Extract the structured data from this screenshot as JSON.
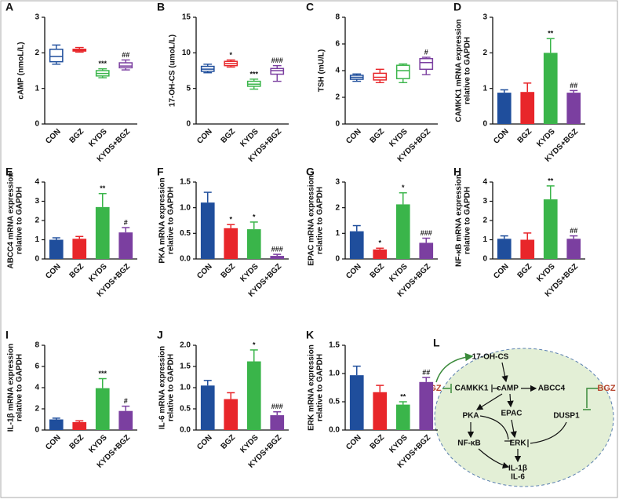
{
  "chart_data": [
    {
      "type": "box",
      "panel": "A",
      "ylabel": [
        "cAMP (nmoL/L)"
      ],
      "categories": [
        "CON",
        "BGZ",
        "KYDS",
        "KYDS+BGZ"
      ],
      "colors": [
        "#1f4e9c",
        "#e8262a",
        "#3ab54a",
        "#7b3fa0"
      ],
      "ylim": [
        0,
        3
      ],
      "yticks": [
        0,
        1,
        2,
        3
      ],
      "boxes": [
        {
          "min": 1.68,
          "q1": 1.75,
          "median": 1.9,
          "q3": 2.1,
          "max": 2.22
        },
        {
          "min": 2.02,
          "q1": 2.05,
          "median": 2.07,
          "q3": 2.1,
          "max": 2.15
        },
        {
          "min": 1.3,
          "q1": 1.35,
          "median": 1.42,
          "q3": 1.5,
          "max": 1.55
        },
        {
          "min": 1.52,
          "q1": 1.58,
          "median": 1.63,
          "q3": 1.72,
          "max": 1.8
        }
      ],
      "annotations": [
        null,
        null,
        "***",
        "##"
      ]
    },
    {
      "type": "box",
      "panel": "B",
      "ylabel": [
        "17-OH-CS (umoL/L)"
      ],
      "categories": [
        "CON",
        "BGZ",
        "KYDS",
        "KYDS+BGZ"
      ],
      "colors": [
        "#1f4e9c",
        "#e8262a",
        "#3ab54a",
        "#7b3fa0"
      ],
      "ylim": [
        0,
        15
      ],
      "yticks": [
        0,
        5,
        10,
        15
      ],
      "boxes": [
        {
          "min": 7.2,
          "q1": 7.4,
          "median": 7.7,
          "q3": 8.1,
          "max": 8.4
        },
        {
          "min": 8.0,
          "q1": 8.2,
          "median": 8.5,
          "q3": 8.8,
          "max": 9.0
        },
        {
          "min": 4.9,
          "q1": 5.3,
          "median": 5.6,
          "q3": 6.0,
          "max": 6.3
        },
        {
          "min": 6.0,
          "q1": 7.0,
          "median": 7.5,
          "q3": 7.8,
          "max": 8.2
        }
      ],
      "annotations": [
        null,
        "*",
        "***",
        "###"
      ]
    },
    {
      "type": "box",
      "panel": "C",
      "ylabel": [
        "TSH (mU/L)"
      ],
      "categories": [
        "CON",
        "BGZ",
        "KYDS",
        "KYDS+BGZ"
      ],
      "colors": [
        "#1f4e9c",
        "#e8262a",
        "#3ab54a",
        "#7b3fa0"
      ],
      "ylim": [
        0,
        8
      ],
      "yticks": [
        0,
        2,
        4,
        6,
        8
      ],
      "boxes": [
        {
          "min": 3.2,
          "q1": 3.35,
          "median": 3.5,
          "q3": 3.65,
          "max": 3.75
        },
        {
          "min": 3.1,
          "q1": 3.3,
          "median": 3.5,
          "q3": 3.8,
          "max": 4.1
        },
        {
          "min": 3.1,
          "q1": 3.4,
          "median": 4.0,
          "q3": 4.4,
          "max": 4.5
        },
        {
          "min": 3.7,
          "q1": 4.1,
          "median": 4.6,
          "q3": 4.9,
          "max": 5.0
        }
      ],
      "annotations": [
        null,
        null,
        null,
        "#"
      ]
    },
    {
      "type": "bar",
      "panel": "D",
      "ylabel": [
        "CAMKK1 mRNA expression",
        "relative to GAPDH"
      ],
      "categories": [
        "CON",
        "BGZ",
        "KYDS",
        "KYDS+BGZ"
      ],
      "colors": [
        "#1f4e9c",
        "#e8262a",
        "#3ab54a",
        "#7b3fa0"
      ],
      "ylim": [
        0,
        3
      ],
      "yticks": [
        0,
        1,
        2,
        3
      ],
      "values": [
        0.88,
        0.9,
        2.0,
        0.88
      ],
      "errors": [
        0.08,
        0.25,
        0.4,
        0.06
      ],
      "annotations": [
        null,
        null,
        "**",
        "##"
      ]
    },
    {
      "type": "bar",
      "panel": "E",
      "ylabel": [
        "ABCC4 mRNA expression",
        "relative to GAPDH"
      ],
      "categories": [
        "CON",
        "BGZ",
        "KYDS",
        "KYDS+BGZ"
      ],
      "colors": [
        "#1f4e9c",
        "#e8262a",
        "#3ab54a",
        "#7b3fa0"
      ],
      "ylim": [
        0,
        4
      ],
      "yticks": [
        0,
        1,
        2,
        3,
        4
      ],
      "values": [
        1.0,
        1.05,
        2.7,
        1.38
      ],
      "errors": [
        0.1,
        0.12,
        0.7,
        0.25
      ],
      "annotations": [
        null,
        null,
        "**",
        "#"
      ]
    },
    {
      "type": "bar",
      "panel": "F",
      "ylabel": [
        "PKA mRNA expression",
        "relative to GAPDH"
      ],
      "categories": [
        "CON",
        "BGZ",
        "KYDS",
        "KYDS+BGZ"
      ],
      "colors": [
        "#1f4e9c",
        "#e8262a",
        "#3ab54a",
        "#7b3fa0"
      ],
      "ylim": [
        0,
        1.5
      ],
      "yticks": [
        {
          "value": 0,
          "label": "0.0"
        },
        0.5,
        {
          "value": 1,
          "label": "1.0"
        },
        1.5
      ],
      "values": [
        1.1,
        0.6,
        0.58,
        0.06
      ],
      "errors": [
        0.2,
        0.07,
        0.14,
        0.03
      ],
      "annotations": [
        null,
        "*",
        "*",
        "###"
      ]
    },
    {
      "type": "bar",
      "panel": "G",
      "ylabel": [
        "EPAC  mRNA expression",
        "relative to GAPDH"
      ],
      "categories": [
        "CON",
        "BGZ",
        "KYDS",
        "KYDS+BGZ"
      ],
      "colors": [
        "#1f4e9c",
        "#e8262a",
        "#3ab54a",
        "#7b3fa0"
      ],
      "ylim": [
        0,
        3
      ],
      "yticks": [
        0,
        1,
        2,
        3
      ],
      "values": [
        1.08,
        0.37,
        2.13,
        0.63
      ],
      "errors": [
        0.22,
        0.05,
        0.45,
        0.18
      ],
      "annotations": [
        null,
        "*",
        "*",
        "###"
      ]
    },
    {
      "type": "bar",
      "panel": "H",
      "ylabel": [
        "NF-κB mRNA expression",
        "relative to GAPDH"
      ],
      "categories": [
        "CON",
        "BGZ",
        "KYDS",
        "KYDS+BGZ"
      ],
      "colors": [
        "#1f4e9c",
        "#e8262a",
        "#3ab54a",
        "#7b3fa0"
      ],
      "ylim": [
        0,
        4
      ],
      "yticks": [
        0,
        1,
        2,
        3,
        4
      ],
      "values": [
        1.05,
        1.0,
        3.1,
        1.05
      ],
      "errors": [
        0.15,
        0.35,
        0.7,
        0.15
      ],
      "annotations": [
        null,
        null,
        "**",
        "##"
      ]
    },
    {
      "type": "bar",
      "panel": "I",
      "ylabel": [
        "IL-1β mRNA expression",
        "relative to GAPDH"
      ],
      "categories": [
        "CON",
        "BGZ",
        "KYDS",
        "KYDS+BGZ"
      ],
      "colors": [
        "#1f4e9c",
        "#e8262a",
        "#3ab54a",
        "#7b3fa0"
      ],
      "ylim": [
        0,
        8
      ],
      "yticks": [
        0,
        2,
        4,
        6,
        8
      ],
      "values": [
        1.0,
        0.75,
        3.95,
        1.8
      ],
      "errors": [
        0.12,
        0.12,
        0.9,
        0.45
      ],
      "annotations": [
        null,
        null,
        "***",
        "#"
      ]
    },
    {
      "type": "bar",
      "panel": "J",
      "ylabel": [
        "IL-6 mRNA expression",
        "relative to GAPDH"
      ],
      "categories": [
        "CON",
        "BGZ",
        "KYDS",
        "KYDS+BGZ"
      ],
      "colors": [
        "#1f4e9c",
        "#e8262a",
        "#3ab54a",
        "#7b3fa0"
      ],
      "ylim": [
        0,
        2
      ],
      "yticks": [
        {
          "value": 0,
          "label": "0.0"
        },
        0.5,
        {
          "value": 1,
          "label": "1.0"
        },
        1.5,
        {
          "value": 2,
          "label": "2.0"
        }
      ],
      "values": [
        1.05,
        0.73,
        1.62,
        0.35
      ],
      "errors": [
        0.12,
        0.15,
        0.27,
        0.08
      ],
      "annotations": [
        null,
        null,
        "*",
        "###"
      ]
    },
    {
      "type": "bar",
      "panel": "K",
      "ylabel": [
        "ERK mRNA expression",
        "relative to GAPDH"
      ],
      "categories": [
        "CON",
        "BGZ",
        "KYDS",
        "KYDS+BGZ"
      ],
      "colors": [
        "#1f4e9c",
        "#e8262a",
        "#3ab54a",
        "#7b3fa0"
      ],
      "ylim": [
        0,
        1.5
      ],
      "yticks": [
        {
          "value": 0,
          "label": "0.0"
        },
        0.5,
        {
          "value": 1,
          "label": "1.0"
        },
        1.5
      ],
      "values": [
        0.97,
        0.67,
        0.45,
        0.85
      ],
      "errors": [
        0.16,
        0.12,
        0.05,
        0.08
      ],
      "annotations": [
        null,
        null,
        "**",
        "##"
      ]
    }
  ],
  "diagram": {
    "panel": "L",
    "nodes": [
      {
        "label": "17-OH-CS"
      },
      {
        "label": "BGZ"
      },
      {
        "label": "CAMKK1"
      },
      {
        "label": "cAMP"
      },
      {
        "label": "ABCC4"
      },
      {
        "label": "BGZ"
      },
      {
        "label": "PKA"
      },
      {
        "label": "EPAC"
      },
      {
        "label": "DUSP1"
      },
      {
        "label": "NF-κB"
      },
      {
        "label": "ERK"
      },
      {
        "label": "IL-1β"
      },
      {
        "label": "IL-6"
      }
    ]
  }
}
